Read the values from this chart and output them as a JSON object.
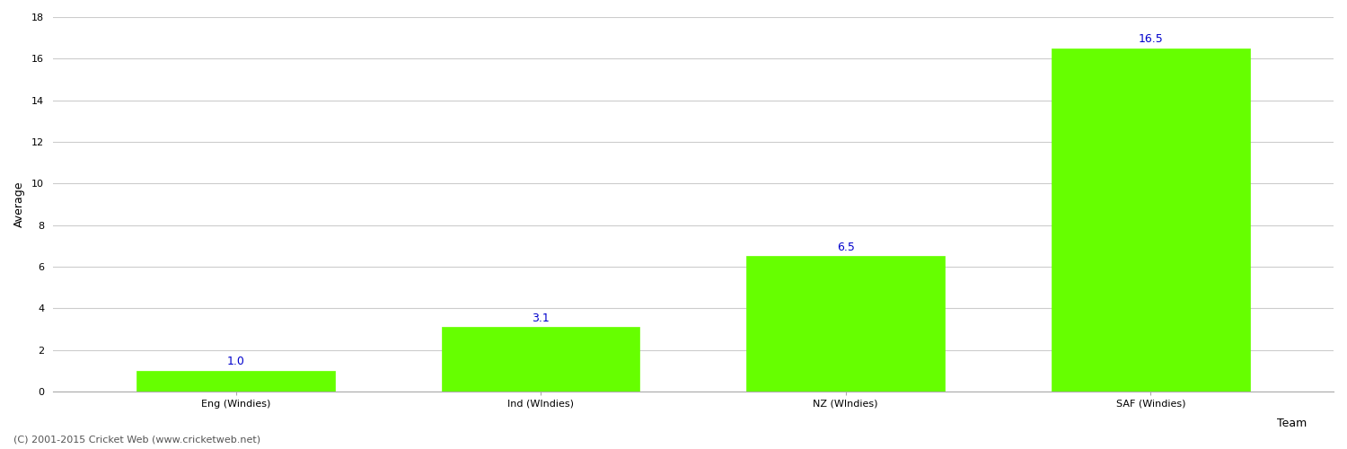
{
  "categories": [
    "Eng (Windies)",
    "Ind (WIndies)",
    "NZ (WIndies)",
    "SAF (Windies)"
  ],
  "values": [
    1.0,
    3.1,
    6.5,
    16.5
  ],
  "bar_color": "#66ff00",
  "bar_edge_color": "#66ff00",
  "xlabel": "Team",
  "ylabel": "Average",
  "ylim": [
    0,
    18
  ],
  "yticks": [
    0,
    2,
    4,
    6,
    8,
    10,
    12,
    14,
    16,
    18
  ],
  "annotation_color": "#0000cc",
  "annotation_fontsize": 9,
  "xlabel_fontsize": 9,
  "ylabel_fontsize": 9,
  "tick_fontsize": 8,
  "grid_color": "#cccccc",
  "background_color": "#ffffff",
  "footer_text": "(C) 2001-2015 Cricket Web (www.cricketweb.net)",
  "footer_fontsize": 8,
  "footer_color": "#555555"
}
